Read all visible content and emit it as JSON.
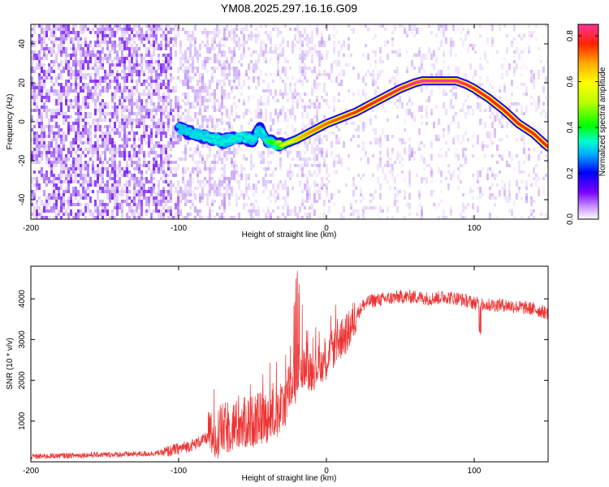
{
  "chart_data": [
    {
      "type": "heatmap",
      "title": "YM08.2025.297.16.16.G09",
      "xlabel": "Height of straight line (km)",
      "ylabel": "Frequency (Hz)",
      "xlim": [
        -200,
        150
      ],
      "ylim": [
        -50,
        50
      ],
      "xticks": [
        -200,
        -100,
        0,
        100
      ],
      "yticks": [
        -40,
        -20,
        0,
        20,
        40
      ],
      "colorbar": {
        "label": "Normalized spectral amplitude",
        "range": [
          0,
          0.85
        ],
        "ticks": [
          "0.0",
          "0.2",
          "0.4",
          "0.6",
          "0.8"
        ]
      },
      "ridge": {
        "x": [
          -100,
          -90,
          -80,
          -70,
          -60,
          -50,
          -45,
          -40,
          -35,
          -30,
          -20,
          -10,
          0,
          10,
          20,
          30,
          40,
          50,
          60,
          65,
          80,
          88,
          95,
          100,
          110,
          120,
          130,
          140,
          150
        ],
        "y": [
          -4,
          -6,
          -8,
          -10,
          -8,
          -9,
          -4,
          -10,
          -11,
          -12,
          -9,
          -5,
          -1,
          2,
          5,
          9,
          13,
          17,
          20,
          21,
          21,
          21,
          19,
          17,
          12,
          6,
          -1,
          -6,
          -13
        ],
        "amplitude": [
          0.3,
          0.32,
          0.33,
          0.33,
          0.33,
          0.33,
          0.3,
          0.38,
          0.45,
          0.55,
          0.65,
          0.7,
          0.72,
          0.74,
          0.76,
          0.78,
          0.8,
          0.82,
          0.84,
          0.85,
          0.85,
          0.84,
          0.82,
          0.8,
          0.78,
          0.78,
          0.78,
          0.78,
          0.78
        ]
      }
    },
    {
      "type": "line",
      "xlabel": "Height of straight line (km)",
      "ylabel": "SNR (10 * v/v)",
      "xlim": [
        -200,
        150
      ],
      "ylim": [
        0,
        4800
      ],
      "xticks": [
        -200,
        -100,
        0,
        100
      ],
      "yticks": [
        1000,
        2000,
        3000,
        4000
      ],
      "series": [
        {
          "name": "SNR",
          "color": "#ee3333",
          "x": [
            -200,
            -180,
            -160,
            -140,
            -120,
            -110,
            -100,
            -90,
            -80,
            -70,
            -60,
            -50,
            -40,
            -30,
            -25,
            -20,
            -15,
            -10,
            -5,
            0,
            5,
            10,
            15,
            20,
            25,
            30,
            40,
            50,
            60,
            70,
            80,
            90,
            100,
            110,
            120,
            130,
            140,
            150
          ],
          "y": [
            130,
            150,
            170,
            180,
            200,
            230,
            320,
            420,
            600,
            800,
            900,
            1000,
            1100,
            1300,
            1800,
            2100,
            2300,
            2200,
            2400,
            2500,
            2800,
            3000,
            3200,
            3600,
            3850,
            3950,
            4000,
            4050,
            4050,
            4000,
            4050,
            4000,
            3900,
            3850,
            3850,
            3800,
            3750,
            3650
          ]
        }
      ]
    }
  ]
}
